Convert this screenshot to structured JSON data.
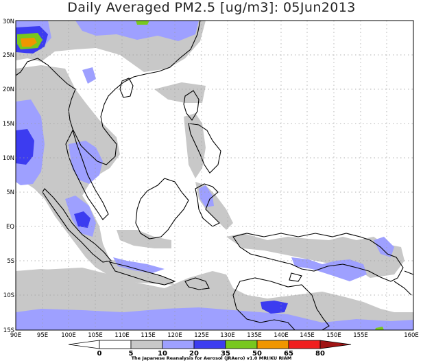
{
  "title": "Daily Averaged PM2.5 [ug/m3]: 05Jun2013",
  "lon_labels": [
    "90E",
    "95E",
    "100E",
    "105E",
    "110E",
    "115E",
    "120E",
    "125E",
    "130E",
    "135E",
    "140E",
    "145E",
    "150E",
    "155E",
    "160E"
  ],
  "lat_labels": [
    "30N",
    "25N",
    "20N",
    "15N",
    "10N",
    "5N",
    "EQ",
    "5S",
    "10S",
    "15S"
  ],
  "colorbar": {
    "ticks": [
      "0",
      "5",
      "10",
      "20",
      "35",
      "50",
      "65",
      "80"
    ],
    "colors": [
      "#ffffff",
      "#c8c8c8",
      "#9ea0ff",
      "#3c3cf0",
      "#78c81e",
      "#f09600",
      "#f01e1e",
      "#a01414"
    ]
  },
  "credit": "The Japanese Reanalysis for Aerosol (JRAero) v1.0 MRI/KU RIAM"
}
